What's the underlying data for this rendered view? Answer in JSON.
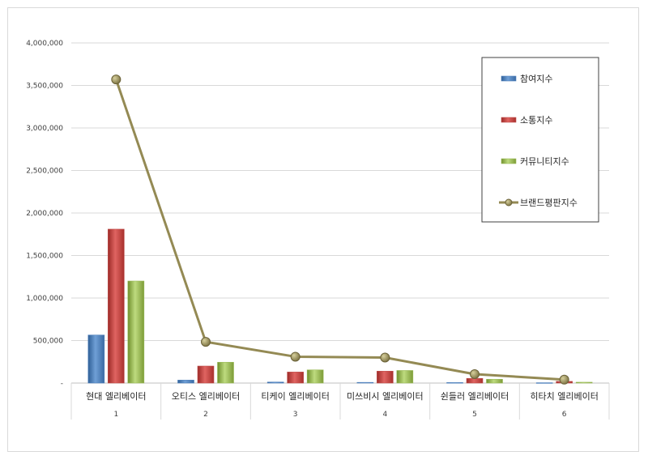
{
  "chart_data": {
    "type": "bar",
    "categories": [
      "현대 엘리베이터",
      "오티스 엘리베이터",
      "티케이 엘리베이터",
      "미쓰비시 엘리베이터",
      "쉰들러 엘리베이터",
      "히타치 엘리베이터"
    ],
    "category_numbers": [
      "1",
      "2",
      "3",
      "4",
      "5",
      "6"
    ],
    "series": [
      {
        "name": "참여지수",
        "kind": "bar",
        "color": "#4f81bd",
        "values": [
          565000,
          35000,
          12000,
          8000,
          6000,
          4000
        ]
      },
      {
        "name": "소통지수",
        "kind": "bar",
        "color": "#c0504d",
        "values": [
          1810000,
          200000,
          130000,
          140000,
          55000,
          20000
        ]
      },
      {
        "name": "커뮤니티지수",
        "kind": "bar",
        "color": "#9bbb59",
        "values": [
          1200000,
          245000,
          155000,
          148000,
          45000,
          10000
        ]
      },
      {
        "name": "브랜드평판지수",
        "kind": "line",
        "color": "#948a54",
        "values": [
          3570000,
          485000,
          310000,
          300000,
          105000,
          40000
        ]
      }
    ],
    "y_ticks": [
      "-",
      "500,000",
      "1,000,000",
      "1,500,000",
      "2,000,000",
      "2,500,000",
      "3,000,000",
      "3,500,000",
      "4,000,000"
    ],
    "ylim": [
      0,
      4000000
    ],
    "grid": true,
    "legend_position": "top-right",
    "title": "",
    "xlabel": "",
    "ylabel": ""
  }
}
